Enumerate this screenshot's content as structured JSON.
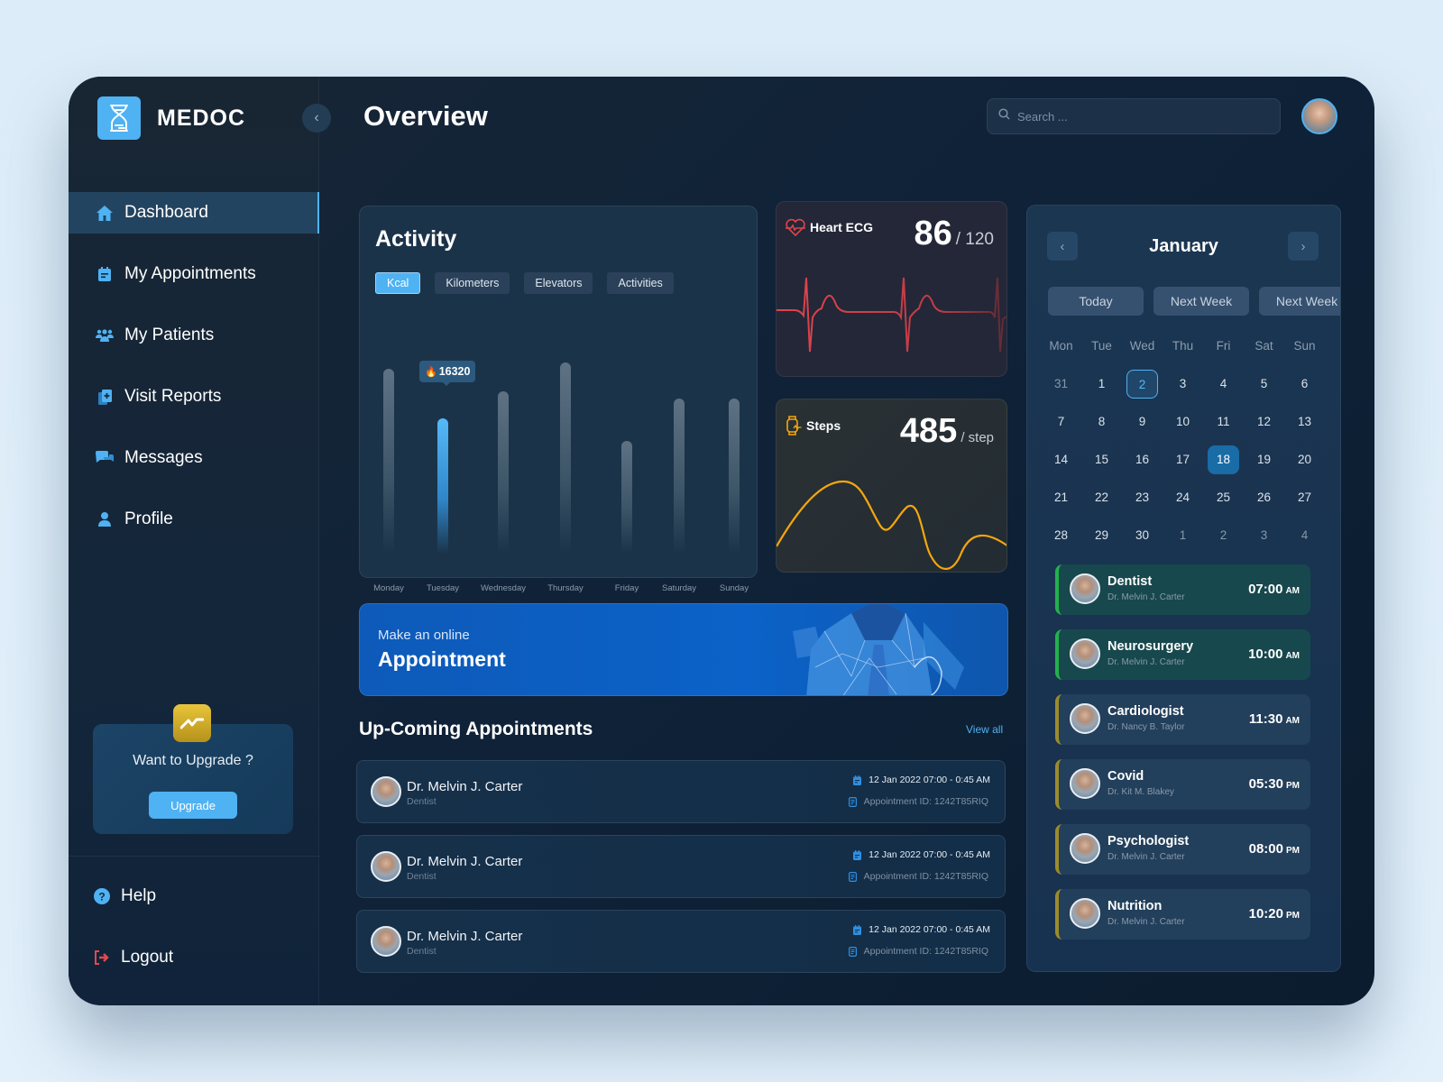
{
  "app": {
    "name": "MEDOC"
  },
  "header": {
    "title": "Overview",
    "search_placeholder": "Search ..."
  },
  "sidebar": {
    "items": [
      {
        "label": "Dashboard",
        "icon": "home-icon",
        "active": true
      },
      {
        "label": "My Appointments",
        "icon": "calendar-icon"
      },
      {
        "label": "My Patients",
        "icon": "users-icon"
      },
      {
        "label": "Visit Reports",
        "icon": "report-icon"
      },
      {
        "label": "Messages",
        "icon": "chat-icon"
      },
      {
        "label": "Profile",
        "icon": "user-icon"
      }
    ],
    "upgrade": {
      "title": "Want to Upgrade ?",
      "button": "Upgrade"
    },
    "help": "Help",
    "logout": "Logout"
  },
  "activity": {
    "title": "Activity",
    "tabs": [
      "Kcal",
      "Kilometers",
      "Elevators",
      "Activities"
    ],
    "active_tab": "Kcal",
    "tooltip_value": "16320",
    "tooltip_icon": "🔥"
  },
  "chart_data": {
    "type": "bar",
    "title": "Activity",
    "categories": [
      "Monday",
      "Tuesday",
      "Wednesday",
      "Thursday",
      "Friday",
      "Saturday",
      "Sunday"
    ],
    "values": [
      205,
      150,
      180,
      212,
      125,
      172,
      172
    ],
    "highlighted": "Tuesday",
    "highlight_label": "16320",
    "unit": "Kcal"
  },
  "heart": {
    "label": "Heart ECG",
    "value": "86",
    "max": "/ 120",
    "color": "#e0444b"
  },
  "steps": {
    "label": "Steps",
    "value": "485",
    "unit": "/ step",
    "color": "#f5a70c"
  },
  "banner": {
    "subtitle": "Make an online",
    "title": "Appointment"
  },
  "upcoming": {
    "title": "Up-Coming Appointments",
    "view_all": "View all",
    "items": [
      {
        "name": "Dr. Melvin J. Carter",
        "specialty": "Dentist",
        "datetime": "12 Jan 2022 07:00 - 0:45 AM",
        "appointment_id": "Appointment ID: 1242T85RIQ"
      },
      {
        "name": "Dr. Melvin J. Carter",
        "specialty": "Dentist",
        "datetime": "12 Jan 2022 07:00 - 0:45 AM",
        "appointment_id": "Appointment ID: 1242T85RIQ"
      },
      {
        "name": "Dr. Melvin J. Carter",
        "specialty": "Dentist",
        "datetime": "12 Jan 2022 07:00 - 0:45 AM",
        "appointment_id": "Appointment ID: 1242T85RIQ"
      }
    ]
  },
  "calendar": {
    "month": "January",
    "quick": [
      "Today",
      "Next Week",
      "Next Week"
    ],
    "weekdays": [
      "Mon",
      "Tue",
      "Wed",
      "Thu",
      "Fri",
      "Sat",
      "Sun"
    ],
    "weeks": [
      [
        "31",
        "1",
        "2",
        "3",
        "4",
        "5",
        "6"
      ],
      [
        "7",
        "8",
        "9",
        "10",
        "11",
        "12",
        "13"
      ],
      [
        "14",
        "15",
        "16",
        "17",
        "18",
        "19",
        "20"
      ],
      [
        "21",
        "22",
        "23",
        "24",
        "25",
        "26",
        "27"
      ],
      [
        "28",
        "29",
        "30",
        "1",
        "2",
        "3",
        "4"
      ]
    ],
    "outlined_day": "2",
    "selected_day": "18"
  },
  "schedule": [
    {
      "title": "Dentist",
      "doctor": "Dr. Melvin J. Carter",
      "time": "07:00",
      "ampm": "AM",
      "accent": "green"
    },
    {
      "title": "Neurosurgery",
      "doctor": "Dr. Melvin J. Carter",
      "time": "10:00",
      "ampm": "AM",
      "accent": "green"
    },
    {
      "title": "Cardiologist",
      "doctor": "Dr. Nancy B. Taylor",
      "time": "11:30",
      "ampm": "AM",
      "accent": "gold"
    },
    {
      "title": "Covid",
      "doctor": "Dr. Kit M. Blakey",
      "time": "05:30",
      "ampm": "PM",
      "accent": "gold"
    },
    {
      "title": "Psychologist",
      "doctor": "Dr. Melvin J. Carter",
      "time": "08:00",
      "ampm": "PM",
      "accent": "gold"
    },
    {
      "title": "Nutrition",
      "doctor": "Dr. Melvin J. Carter",
      "time": "10:20",
      "ampm": "PM",
      "accent": "gold"
    }
  ],
  "colors": {
    "accent": "#4fb2f3",
    "background": "#0f2238",
    "heart": "#e0444b",
    "steps": "#f5a70c",
    "green": "#23b14d",
    "gold": "#9c8a2c"
  }
}
